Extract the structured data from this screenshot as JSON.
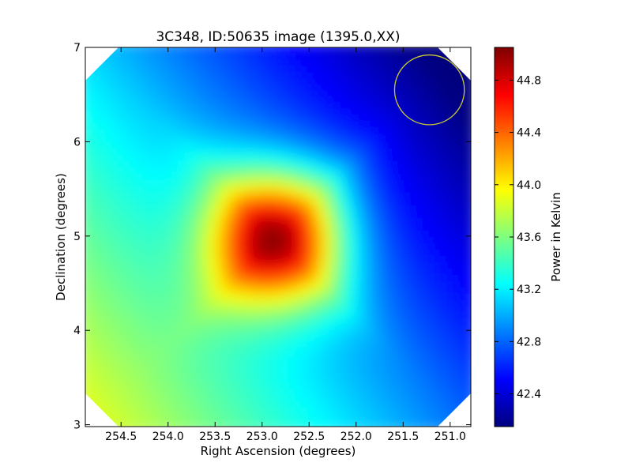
{
  "colors": {
    "background": "#ffffff",
    "beam_circle": "#c8c832",
    "colormap": [
      "#00007f",
      "#0000ff",
      "#007fff",
      "#00ffff",
      "#7fff7f",
      "#ffff00",
      "#ff7f00",
      "#ff0000",
      "#7f0000"
    ]
  },
  "chart_data": {
    "type": "heatmap",
    "title": "3C348, ID:50635 image (1395.0,XX)",
    "xlabel": "Right Ascension (degrees)",
    "ylabel": "Declination (degrees)",
    "colorbar_label": "Power in Kelvin",
    "xlim": [
      254.88,
      250.78
    ],
    "ylim": [
      2.98,
      7.0
    ],
    "x_ticks": [
      {
        "value": 254.5,
        "label": "254.5"
      },
      {
        "value": 254.0,
        "label": "254.0"
      },
      {
        "value": 253.5,
        "label": "253.5"
      },
      {
        "value": 253.0,
        "label": "253.0"
      },
      {
        "value": 252.5,
        "label": "252.5"
      },
      {
        "value": 252.0,
        "label": "252.0"
      },
      {
        "value": 251.5,
        "label": "251.5"
      },
      {
        "value": 251.0,
        "label": "251.0"
      }
    ],
    "y_ticks": [
      {
        "value": 3,
        "label": "3"
      },
      {
        "value": 4,
        "label": "4"
      },
      {
        "value": 5,
        "label": "5"
      },
      {
        "value": 6,
        "label": "6"
      },
      {
        "value": 7,
        "label": "7"
      }
    ],
    "colorbar_range": [
      42.15,
      45.05
    ],
    "colorbar_ticks": [
      {
        "value": 42.4,
        "label": "42.4"
      },
      {
        "value": 42.8,
        "label": "42.8"
      },
      {
        "value": 43.2,
        "label": "43.2"
      },
      {
        "value": 43.6,
        "label": "43.6"
      },
      {
        "value": 44.0,
        "label": "44.0"
      },
      {
        "value": 44.4,
        "label": "44.4"
      },
      {
        "value": 44.8,
        "label": "44.8"
      }
    ],
    "peak": {
      "ra": 252.85,
      "dec": 4.98,
      "value": 45.0
    },
    "beam_circle": {
      "ra": 251.22,
      "dec": 6.55,
      "radius_deg": 0.37
    },
    "grid": false
  }
}
